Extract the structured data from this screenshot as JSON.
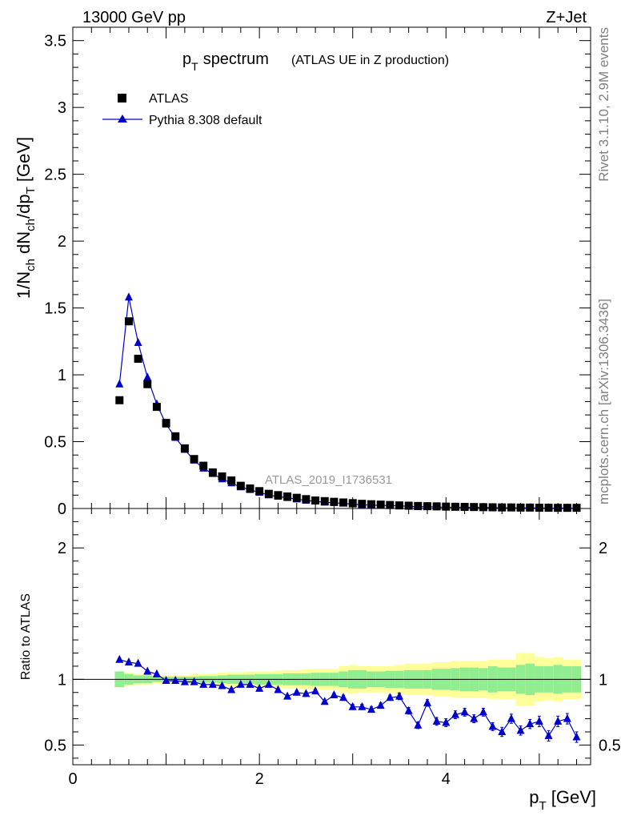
{
  "header": {
    "energy_label": "13000 GeV pp",
    "process_label": "Z+Jet"
  },
  "side_labels": {
    "rivet": "Rivet 3.1.10,  2.9M events",
    "mcplots": "mcplots.cern.ch [arXiv:1306.3436]"
  },
  "watermark": "ATLAS_2019_I1736531",
  "chart_data": [
    {
      "type": "scatter",
      "panel": "main",
      "title": "p_T spectrum",
      "subtitle": "(ATLAS UE in Z production)",
      "ylabel": "1/N_ch dN_ch/dp_T [GeV]",
      "xlim": [
        0,
        5.55
      ],
      "ylim": [
        0,
        3.6
      ],
      "xticks": [
        "0",
        "2",
        "4"
      ],
      "yticks": [
        "0",
        "0.5",
        "1",
        "1.5",
        "2",
        "2.5",
        "3",
        "3.5"
      ],
      "legend_position": "top-left",
      "x": [
        0.5,
        0.6,
        0.7,
        0.8,
        0.9,
        1.0,
        1.1,
        1.2,
        1.3,
        1.4,
        1.5,
        1.6,
        1.7,
        1.8,
        1.9,
        2.0,
        2.1,
        2.2,
        2.3,
        2.4,
        2.5,
        2.6,
        2.7,
        2.8,
        2.9,
        3.0,
        3.1,
        3.2,
        3.3,
        3.4,
        3.5,
        3.6,
        3.7,
        3.8,
        3.9,
        4.0,
        4.1,
        4.2,
        4.3,
        4.4,
        4.5,
        4.6,
        4.7,
        4.8,
        4.9,
        5.0,
        5.1,
        5.2,
        5.3,
        5.4
      ],
      "series": [
        {
          "name": "ATLAS",
          "color": "#000000",
          "marker": "square",
          "values": [
            0.81,
            1.4,
            1.12,
            0.93,
            0.76,
            0.64,
            0.54,
            0.45,
            0.37,
            0.32,
            0.27,
            0.24,
            0.21,
            0.17,
            0.15,
            0.13,
            0.11,
            0.1,
            0.09,
            0.08,
            0.07,
            0.06,
            0.055,
            0.05,
            0.045,
            0.04,
            0.035,
            0.032,
            0.029,
            0.026,
            0.023,
            0.021,
            0.019,
            0.017,
            0.016,
            0.014,
            0.013,
            0.012,
            0.011,
            0.01,
            0.009,
            0.008,
            0.008,
            0.007,
            0.007,
            0.006,
            0.006,
            0.005,
            0.005,
            0.005
          ]
        },
        {
          "name": "Pythia 8.308 default",
          "color": "#0000cc",
          "marker": "triangle",
          "values": [
            0.93,
            1.58,
            1.24,
            0.98,
            0.78,
            0.63,
            0.53,
            0.44,
            0.36,
            0.3,
            0.26,
            0.22,
            0.19,
            0.16,
            0.14,
            0.12,
            0.1,
            0.09,
            0.08,
            0.07,
            0.06,
            0.054,
            0.046,
            0.043,
            0.038,
            0.032,
            0.028,
            0.025,
            0.023,
            0.022,
            0.02,
            0.016,
            0.012,
            0.014,
            0.011,
            0.0095,
            0.0095,
            0.0088,
            0.0077,
            0.0076,
            0.0058,
            0.0048,
            0.0056,
            0.0043,
            0.0046,
            0.0041,
            0.0035,
            0.0034,
            0.0035,
            0.0028
          ]
        }
      ]
    },
    {
      "type": "line",
      "panel": "ratio",
      "ylabel": "Ratio to ATLAS",
      "xlabel": "p_T [GeV]",
      "xlim": [
        0,
        5.55
      ],
      "ylim": [
        0.35,
        2.3
      ],
      "xticks": [
        "0",
        "2",
        "4"
      ],
      "yticks": [
        "0.5",
        "1",
        "2"
      ],
      "reference_line": 1,
      "bands": {
        "inner_color": "#90ee90",
        "outer_color": "#ffff99",
        "inner": [
          0.06,
          0.04,
          0.03,
          0.03,
          0.02,
          0.02,
          0.02,
          0.02,
          0.02,
          0.025,
          0.025,
          0.03,
          0.035,
          0.035,
          0.035,
          0.04,
          0.04,
          0.04,
          0.045,
          0.045,
          0.045,
          0.05,
          0.05,
          0.05,
          0.06,
          0.07,
          0.07,
          0.06,
          0.06,
          0.065,
          0.065,
          0.07,
          0.07,
          0.07,
          0.08,
          0.08,
          0.085,
          0.09,
          0.09,
          0.085,
          0.1,
          0.09,
          0.09,
          0.11,
          0.12,
          0.1,
          0.1,
          0.11,
          0.1,
          0.1
        ],
        "outer": [
          0.06,
          0.05,
          0.04,
          0.04,
          0.03,
          0.03,
          0.03,
          0.03,
          0.04,
          0.04,
          0.045,
          0.05,
          0.055,
          0.055,
          0.06,
          0.06,
          0.06,
          0.065,
          0.07,
          0.07,
          0.075,
          0.08,
          0.08,
          0.08,
          0.1,
          0.11,
          0.1,
          0.1,
          0.1,
          0.1,
          0.11,
          0.12,
          0.12,
          0.12,
          0.13,
          0.13,
          0.14,
          0.14,
          0.14,
          0.14,
          0.15,
          0.15,
          0.15,
          0.2,
          0.2,
          0.17,
          0.16,
          0.17,
          0.15,
          0.15
        ]
      },
      "series": [
        {
          "name": "Pythia 8.308 default",
          "color": "#0000cc",
          "marker": "triangle",
          "values": [
            1.15,
            1.13,
            1.12,
            1.06,
            1.04,
            0.99,
            0.99,
            0.98,
            0.98,
            0.96,
            0.96,
            0.95,
            0.92,
            0.96,
            0.96,
            0.93,
            0.96,
            0.92,
            0.87,
            0.9,
            0.89,
            0.91,
            0.83,
            0.88,
            0.86,
            0.79,
            0.79,
            0.77,
            0.8,
            0.86,
            0.87,
            0.76,
            0.65,
            0.82,
            0.68,
            0.67,
            0.73,
            0.75,
            0.7,
            0.75,
            0.64,
            0.6,
            0.7,
            0.61,
            0.66,
            0.68,
            0.57,
            0.68,
            0.7,
            0.56
          ],
          "errors": [
            0.008,
            0.008,
            0.008,
            0.008,
            0.008,
            0.008,
            0.008,
            0.008,
            0.008,
            0.008,
            0.01,
            0.01,
            0.01,
            0.01,
            0.01,
            0.01,
            0.012,
            0.012,
            0.012,
            0.012,
            0.015,
            0.015,
            0.015,
            0.015,
            0.02,
            0.02,
            0.02,
            0.02,
            0.02,
            0.02,
            0.025,
            0.025,
            0.025,
            0.025,
            0.03,
            0.03,
            0.03,
            0.03,
            0.03,
            0.03,
            0.03,
            0.035,
            0.035,
            0.035,
            0.035,
            0.04,
            0.04,
            0.04,
            0.04,
            0.04
          ]
        }
      ]
    }
  ]
}
